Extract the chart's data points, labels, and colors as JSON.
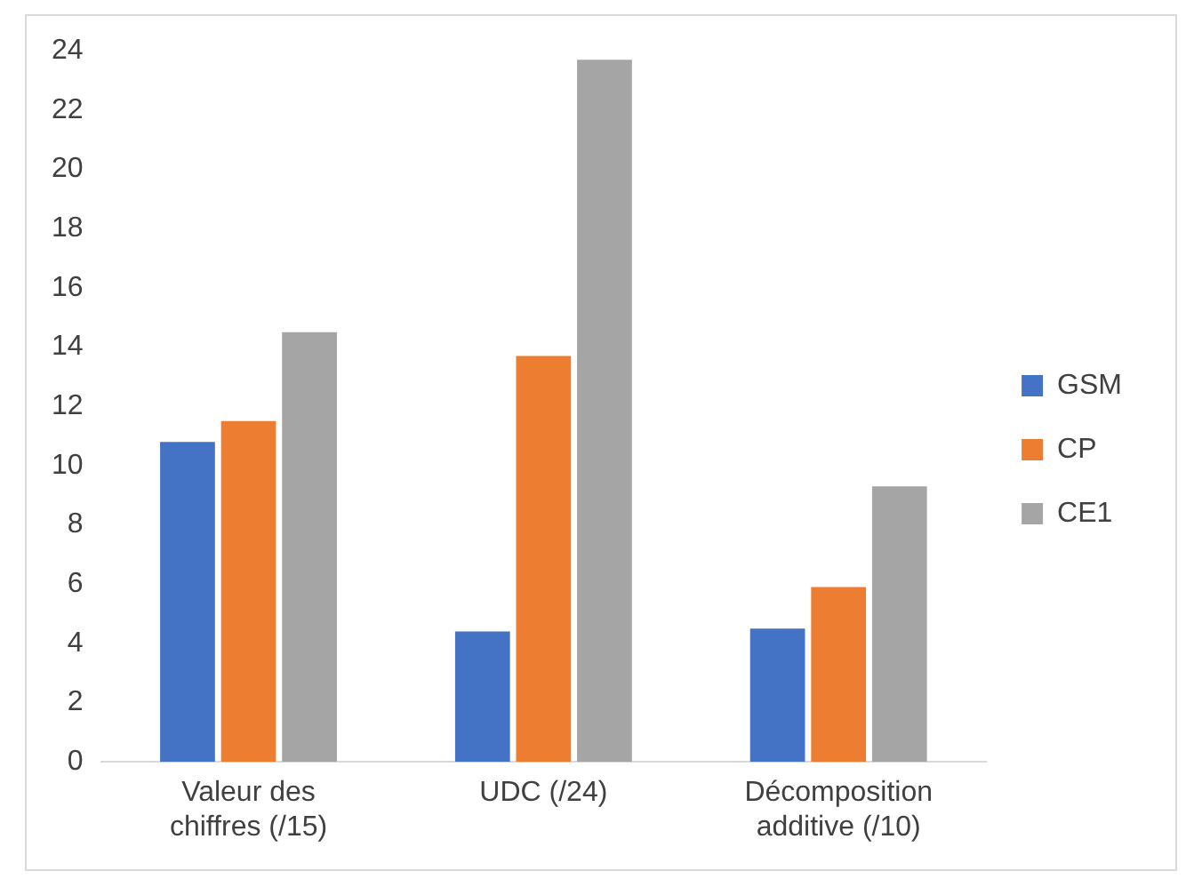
{
  "chart_data": {
    "type": "bar",
    "categories": [
      "Valeur des chiffres (/15)",
      "UDC (/24)",
      "Décomposition additive (/10)"
    ],
    "series": [
      {
        "name": "GSM",
        "color": "#4472c4",
        "values": [
          10.8,
          4.4,
          4.5
        ]
      },
      {
        "name": "CP",
        "color": "#ed7d31",
        "values": [
          11.5,
          13.7,
          5.9
        ]
      },
      {
        "name": "CE1",
        "color": "#a5a5a5",
        "values": [
          14.5,
          23.7,
          9.3
        ]
      }
    ],
    "ylim": [
      0,
      24
    ],
    "yticks": [
      0,
      2,
      4,
      6,
      8,
      10,
      12,
      14,
      16,
      18,
      20,
      22,
      24
    ],
    "grid": false,
    "legend": "right"
  }
}
